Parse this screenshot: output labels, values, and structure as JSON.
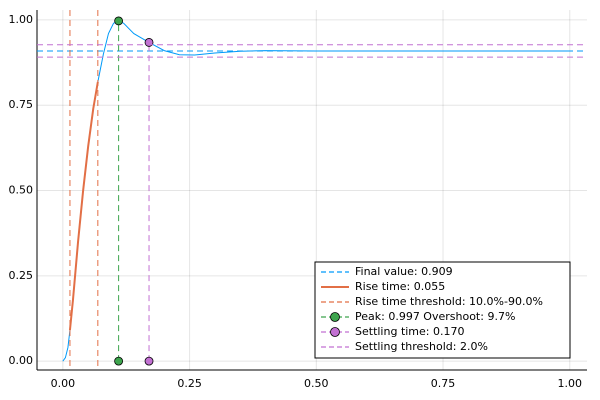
{
  "chart_data": {
    "type": "line",
    "xlim": [
      -0.051,
      1.034
    ],
    "ylim": [
      -0.026,
      1.029
    ],
    "xticks": [
      {
        "value": 0,
        "label": "0.00"
      },
      {
        "value": 0.25,
        "label": "0.25"
      },
      {
        "value": 0.5,
        "label": "0.50"
      },
      {
        "value": 0.75,
        "label": "0.75"
      },
      {
        "value": 1,
        "label": "1.00"
      }
    ],
    "yticks": [
      {
        "value": 0,
        "label": "0.00"
      },
      {
        "value": 0.25,
        "label": "0.25"
      },
      {
        "value": 0.5,
        "label": "0.50"
      },
      {
        "value": 0.75,
        "label": "0.75"
      },
      {
        "value": 1,
        "label": "1.00"
      }
    ],
    "grid": true,
    "legend": "bottom-right",
    "series": [
      {
        "color": "#009af9",
        "kind": "line",
        "width": 1,
        "x": [
          0,
          0.005,
          0.01,
          0.014,
          0.02,
          0.03,
          0.04,
          0.05,
          0.06,
          0.069,
          0.08,
          0.09,
          0.1,
          0.11,
          0.12,
          0.14,
          0.17,
          0.2,
          0.23,
          0.26,
          0.3,
          0.35,
          0.4,
          0.5,
          0.7,
          1.0
        ],
        "values": [
          0,
          0.01,
          0.04,
          0.091,
          0.18,
          0.35,
          0.5,
          0.63,
          0.74,
          0.818,
          0.9,
          0.96,
          0.99,
          0.997,
          0.99,
          0.96,
          0.934,
          0.91,
          0.898,
          0.897,
          0.903,
          0.908,
          0.91,
          0.909,
          0.909,
          0.909
        ]
      },
      {
        "name": "Final value: 0.909",
        "color": "#009af9",
        "kind": "hline",
        "dash": true,
        "values": [
          0.909
        ]
      },
      {
        "name": "Rise time: 0.055",
        "color": "#e26f46",
        "kind": "line",
        "width": 2,
        "x": [
          0.014,
          0.02,
          0.03,
          0.04,
          0.05,
          0.06,
          0.069
        ],
        "values": [
          0.091,
          0.18,
          0.35,
          0.5,
          0.63,
          0.74,
          0.818
        ]
      },
      {
        "name": "Rise time threshold: 10.0%-90.0%",
        "color": "#e26f46",
        "kind": "vline",
        "dash": true,
        "x": [
          0.014,
          0.069
        ]
      },
      {
        "name": "Peak: 0.997 Overshoot: 9.7%",
        "color": "#3da44d",
        "kind": "line",
        "dash": true,
        "marker": true,
        "x": [
          0.11,
          0.11
        ],
        "values": [
          0,
          0.997
        ]
      },
      {
        "name": "Settling time: 0.170",
        "color": "#c271d2",
        "kind": "line",
        "dash": true,
        "marker": true,
        "x": [
          0.17,
          0.17
        ],
        "values": [
          0,
          0.934
        ]
      },
      {
        "name": "Settling threshold: 2.0%",
        "color": "#c271d2",
        "kind": "hline",
        "dash": true,
        "values": [
          0.891,
          0.927
        ]
      }
    ]
  }
}
